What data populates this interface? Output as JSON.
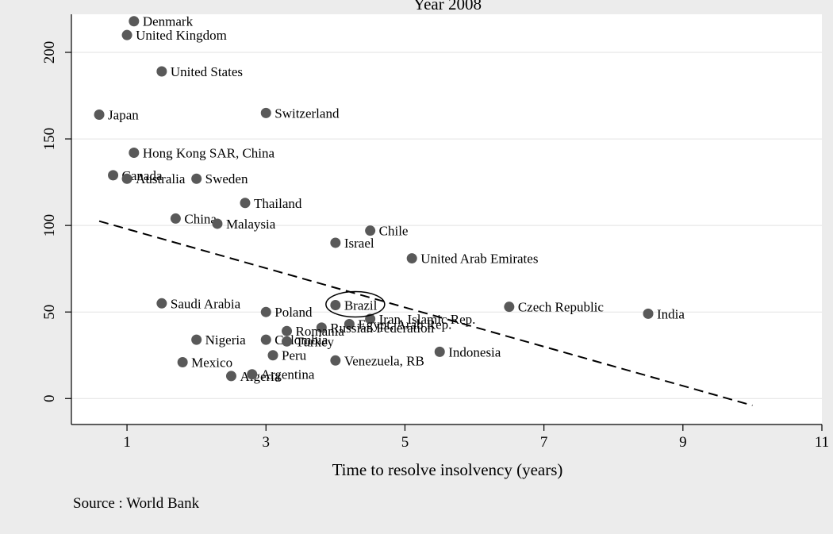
{
  "chart_data": {
    "type": "scatter",
    "title": "Year 2008",
    "xlabel": "Time to resolve insolvency (years)",
    "ylabel": "",
    "source_note": "Source : World Bank",
    "xlim": [
      0.2,
      11
    ],
    "ylim": [
      -15,
      222
    ],
    "xticks": [
      1,
      3,
      5,
      7,
      9,
      11
    ],
    "yticks": [
      0,
      50,
      100,
      150,
      200
    ],
    "grid": true,
    "point_color": "#595959",
    "fit_line": {
      "style": "dashed",
      "from": [
        0.6,
        102.5
      ],
      "to": [
        10,
        -4
      ]
    },
    "highlight": {
      "label": "Brazil",
      "shape": "ellipse"
    },
    "points": [
      {
        "label": "Denmark",
        "x": 1.1,
        "y": 218
      },
      {
        "label": "United Kingdom",
        "x": 1.0,
        "y": 210
      },
      {
        "label": "United States",
        "x": 1.5,
        "y": 189
      },
      {
        "label": "Japan",
        "x": 0.6,
        "y": 164
      },
      {
        "label": "Switzerland",
        "x": 3.0,
        "y": 165
      },
      {
        "label": "Hong Kong SAR, China",
        "x": 1.1,
        "y": 142
      },
      {
        "label": "Canada",
        "x": 0.8,
        "y": 129
      },
      {
        "label": "Australia",
        "x": 1.0,
        "y": 127
      },
      {
        "label": "Sweden",
        "x": 2.0,
        "y": 127
      },
      {
        "label": "Thailand",
        "x": 2.7,
        "y": 113
      },
      {
        "label": "China",
        "x": 1.7,
        "y": 104
      },
      {
        "label": "Malaysia",
        "x": 2.3,
        "y": 101
      },
      {
        "label": "Chile",
        "x": 4.5,
        "y": 97
      },
      {
        "label": "Israel",
        "x": 4.0,
        "y": 90
      },
      {
        "label": "United Arab Emirates",
        "x": 5.1,
        "y": 81
      },
      {
        "label": "Saudi Arabia",
        "x": 1.5,
        "y": 55
      },
      {
        "label": "Brazil",
        "x": 4.0,
        "y": 54
      },
      {
        "label": "Czech Republic",
        "x": 6.5,
        "y": 53
      },
      {
        "label": "Poland",
        "x": 3.0,
        "y": 50
      },
      {
        "label": "India",
        "x": 8.5,
        "y": 49
      },
      {
        "label": "Iran, Islamic Rep.",
        "x": 4.5,
        "y": 46
      },
      {
        "label": "Egypt, Arab Rep.",
        "x": 4.2,
        "y": 43
      },
      {
        "label": "Russian Federation",
        "x": 3.8,
        "y": 41
      },
      {
        "label": "Romania",
        "x": 3.3,
        "y": 39
      },
      {
        "label": "Nigeria",
        "x": 2.0,
        "y": 34
      },
      {
        "label": "Colombia",
        "x": 3.0,
        "y": 34
      },
      {
        "label": "Turkey",
        "x": 3.3,
        "y": 33
      },
      {
        "label": "Indonesia",
        "x": 5.5,
        "y": 27
      },
      {
        "label": "Peru",
        "x": 3.1,
        "y": 25
      },
      {
        "label": "Venezuela, RB",
        "x": 4.0,
        "y": 22
      },
      {
        "label": "Mexico",
        "x": 1.8,
        "y": 21
      },
      {
        "label": "Algeria",
        "x": 2.5,
        "y": 13
      },
      {
        "label": "Argentina",
        "x": 2.8,
        "y": 14
      }
    ]
  }
}
